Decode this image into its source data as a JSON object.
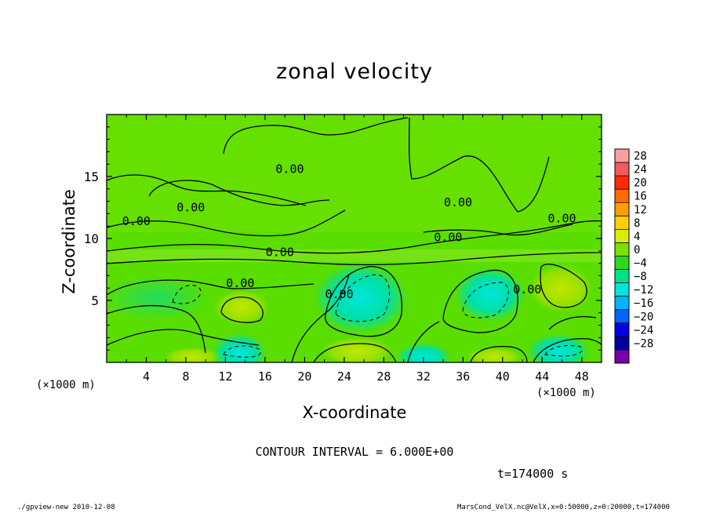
{
  "chart_data": {
    "type": "heatmap",
    "title": "zonal velocity",
    "xlabel": "X-coordinate",
    "ylabel": "Z-coordinate",
    "x_unit_left": "(×1000 m)",
    "x_unit_right": "(×1000 m)",
    "xlim": [
      0,
      50
    ],
    "ylim": [
      0,
      20
    ],
    "x_ticks": [
      4,
      8,
      12,
      16,
      20,
      24,
      28,
      32,
      36,
      40,
      44,
      48
    ],
    "y_ticks": [
      5,
      10,
      15
    ],
    "colorbar": {
      "levels": [
        28,
        24,
        20,
        16,
        12,
        8,
        4,
        0,
        -4,
        -8,
        -12,
        -16,
        -20,
        -24,
        -28
      ],
      "labels": [
        "28",
        "24",
        "20",
        "16",
        "12",
        "8",
        "4",
        "0",
        "−4",
        "−8",
        "−12",
        "−16",
        "−20",
        "−24",
        "−28"
      ],
      "colors": [
        "#f7a0a0",
        "#f05a5a",
        "#ff2a00",
        "#ff6a00",
        "#ff9e00",
        "#ffd000",
        "#d8f000",
        "#7ce000",
        "#2ed820",
        "#00e08a",
        "#00e6dc",
        "#00b4ff",
        "#0064ff",
        "#0000e0",
        "#0000a0",
        "#7800a8"
      ]
    },
    "contour_labels": [
      {
        "text": "0.00",
        "x": 18.5,
        "z": 15.6
      },
      {
        "text": "0.00",
        "x": 8.5,
        "z": 12.5
      },
      {
        "text": "0.00",
        "x": 3.0,
        "z": 11.4
      },
      {
        "text": "0.00",
        "x": 35.5,
        "z": 12.9
      },
      {
        "text": "0.00",
        "x": 46.0,
        "z": 11.6
      },
      {
        "text": "0.00",
        "x": 34.5,
        "z": 10.1
      },
      {
        "text": "0.00",
        "x": 17.5,
        "z": 8.9
      },
      {
        "text": "0.00",
        "x": 13.5,
        "z": 6.4
      },
      {
        "text": "0.00",
        "x": 23.5,
        "z": 5.5
      },
      {
        "text": "0.00",
        "x": 42.5,
        "z": 5.9
      }
    ],
    "contour_interval_text": "CONTOUR INTERVAL = 6.000E+00",
    "time_text": "t=174000 s"
  },
  "footer": {
    "left": "./gpview-new  2010-12-08",
    "right": "MarsCond_VelX.nc@VelX,x=0:50000,z=0:20000,t=174000"
  }
}
